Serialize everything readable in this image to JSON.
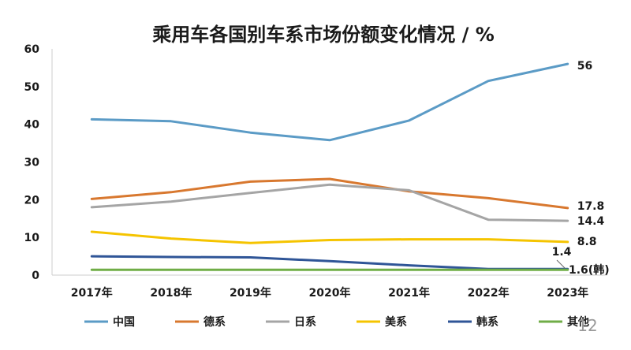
{
  "page_number": "12",
  "chart_data": {
    "type": "line",
    "title": "乘用车各国别车系市场份额变化情况 / %",
    "xlabel": "",
    "ylabel": "",
    "x": [
      "2017年",
      "2018年",
      "2019年",
      "2020年",
      "2021年",
      "2022年",
      "2023年"
    ],
    "ylim": [
      0,
      60
    ],
    "yticks": [
      0,
      10,
      20,
      30,
      40,
      50,
      60
    ],
    "grid": false,
    "legend": "bottom",
    "series": [
      {
        "name": "中国",
        "color": "#5b9bc6",
        "values": [
          41.3,
          40.8,
          37.8,
          35.8,
          41.0,
          51.5,
          56.0
        ],
        "end_label": "56"
      },
      {
        "name": "德系",
        "color": "#d8782f",
        "values": [
          20.2,
          22.0,
          24.8,
          25.5,
          22.2,
          20.4,
          17.8
        ],
        "end_label": "17.8"
      },
      {
        "name": "日系",
        "color": "#a5a5a5",
        "values": [
          18.0,
          19.5,
          21.8,
          24.0,
          22.5,
          14.7,
          14.4
        ],
        "end_label": "14.4"
      },
      {
        "name": "美系",
        "color": "#f5c400",
        "values": [
          11.5,
          9.7,
          8.5,
          9.3,
          9.5,
          9.5,
          8.8
        ],
        "end_label": "8.8"
      },
      {
        "name": "韩系",
        "color": "#2f5597",
        "values": [
          5.0,
          4.8,
          4.7,
          3.7,
          2.6,
          1.6,
          1.6
        ],
        "end_label": "1.6(韩)"
      },
      {
        "name": "其他",
        "color": "#70ad47",
        "values": [
          1.4,
          1.4,
          1.4,
          1.4,
          1.4,
          1.4,
          1.4
        ],
        "end_label": "1.4"
      }
    ]
  }
}
